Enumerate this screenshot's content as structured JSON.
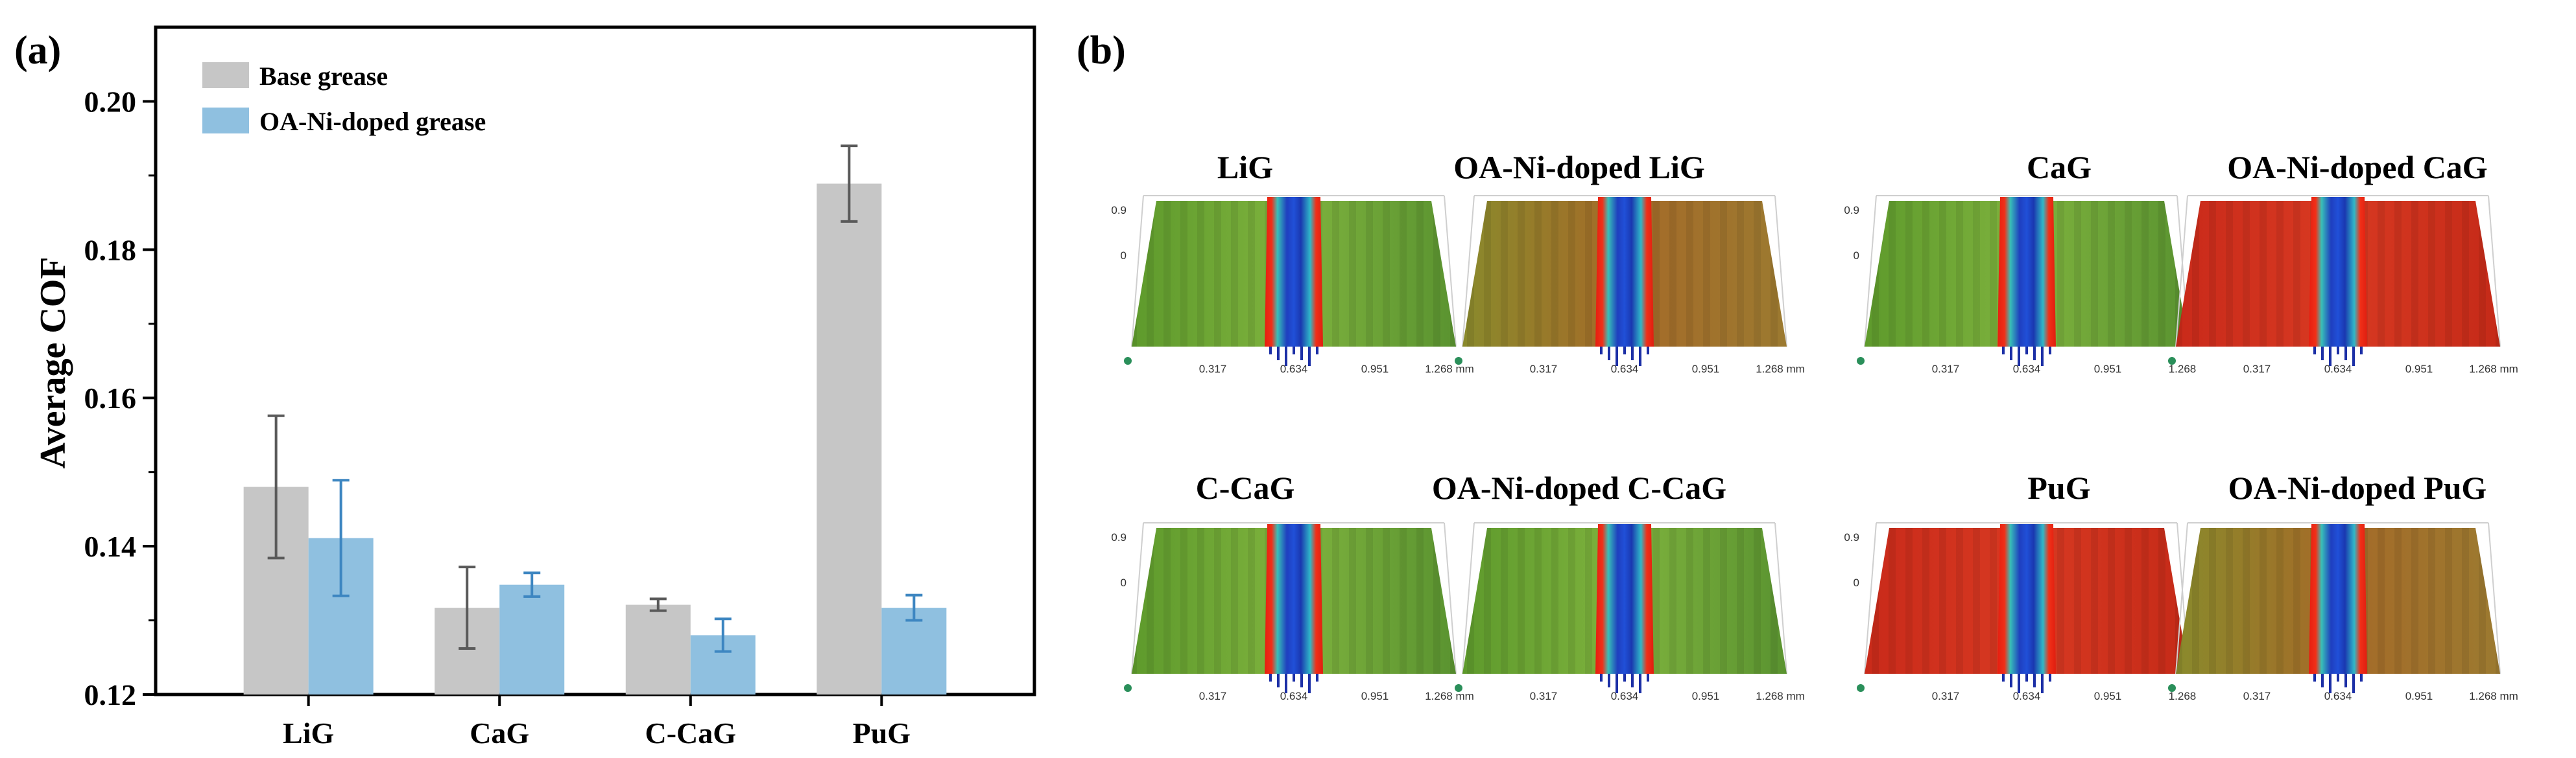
{
  "panels": {
    "a": {
      "label": "(a)"
    },
    "b": {
      "label": "(b)"
    }
  },
  "chart_data": {
    "type": "bar",
    "title": "",
    "xlabel": "",
    "ylabel": "Average COF",
    "ylim": [
      0.12,
      0.21
    ],
    "yticks": [
      "0.12",
      "0.14",
      "0.16",
      "0.18",
      "0.20"
    ],
    "categories": [
      "LiG",
      "CaG",
      "C-CaG",
      "PuG"
    ],
    "legend_position": "top-left",
    "series": [
      {
        "name": "Base grease",
        "color": "#c6c6c6",
        "values": [
          0.148,
          0.1317,
          0.1321,
          0.1889
        ],
        "errors": [
          0.0096,
          0.0055,
          0.0008,
          0.0051
        ]
      },
      {
        "name": "OA-Ni-doped grease",
        "color": "#8fc0e0",
        "values": [
          0.1411,
          0.1348,
          0.128,
          0.1317
        ],
        "errors": [
          0.0078,
          0.0016,
          0.0022,
          0.0017
        ]
      }
    ]
  },
  "maps": [
    {
      "title": "LiG",
      "style": "green",
      "ticks": [
        "0.317",
        "0.634",
        "0.951",
        "1.268 mm"
      ],
      "z_ticks": [
        "0.9",
        "0"
      ]
    },
    {
      "title": "OA-Ni-doped LiG",
      "style": "mixed",
      "ticks": [
        "0.317",
        "0.634",
        "0.951",
        "1.268 mm"
      ],
      "z_ticks": []
    },
    {
      "title": "CaG",
      "style": "green",
      "ticks": [
        "0.317",
        "0.634",
        "0.951",
        "1.268"
      ],
      "z_ticks": [
        "0.9",
        "0"
      ]
    },
    {
      "title": "OA-Ni-doped CaG",
      "style": "red",
      "ticks": [
        "0.317",
        "0.634",
        "0.951",
        "1.268 mm"
      ],
      "z_ticks": []
    },
    {
      "title": "C-CaG",
      "style": "green",
      "ticks": [
        "0.317",
        "0.634",
        "0.951",
        "1.268 mm"
      ],
      "z_ticks": [
        "0.9",
        "0"
      ]
    },
    {
      "title": "OA-Ni-doped C-CaG",
      "style": "green",
      "ticks": [
        "0.317",
        "0.634",
        "0.951",
        "1.268 mm"
      ],
      "z_ticks": []
    },
    {
      "title": "PuG",
      "style": "red",
      "ticks": [
        "0.317",
        "0.634",
        "0.951",
        "1.268"
      ],
      "z_ticks": [
        "0.9",
        "0"
      ]
    },
    {
      "title": "OA-Ni-doped PuG",
      "style": "mixed",
      "ticks": [
        "0.317",
        "0.634",
        "0.951",
        "1.268 mm"
      ],
      "z_ticks": []
    }
  ]
}
